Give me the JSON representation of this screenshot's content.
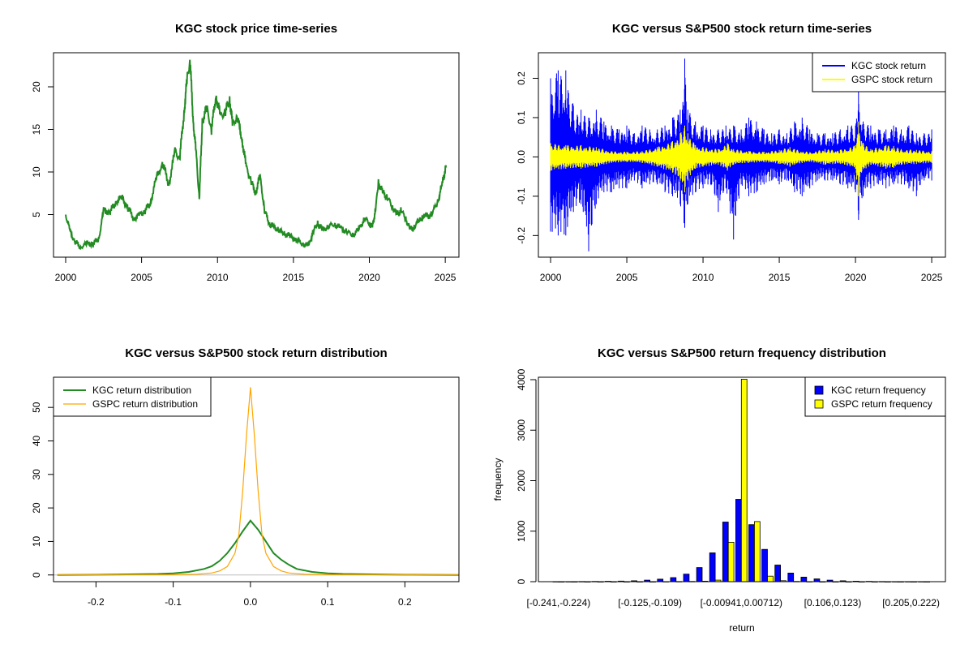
{
  "chart_data": [
    {
      "type": "line",
      "title": "KGC stock price time-series",
      "xlabel": "",
      "ylabel": "",
      "xlim": [
        1999.2,
        2025.9
      ],
      "ylim": [
        0.0,
        24.0
      ],
      "xticks": [
        2000,
        2005,
        2010,
        2015,
        2020,
        2025
      ],
      "xtick_labels": [
        "2000",
        "2005",
        "2010",
        "2015",
        "2020",
        "2025"
      ],
      "yticks": [
        5,
        10,
        15,
        20
      ],
      "ytick_labels": [
        "5",
        "10",
        "15",
        "20"
      ],
      "series": [
        {
          "name": "KGC",
          "color": "#228B22",
          "x": [
            2000.0,
            2000.3,
            2000.6,
            2001.0,
            2001.4,
            2001.8,
            2002.2,
            2002.5,
            2002.9,
            2003.3,
            2003.7,
            2004.1,
            2004.5,
            2004.9,
            2005.2,
            2005.6,
            2006.0,
            2006.4,
            2006.8,
            2007.2,
            2007.5,
            2007.8,
            2008.0,
            2008.2,
            2008.4,
            2008.6,
            2008.8,
            2009.0,
            2009.3,
            2009.6,
            2009.9,
            2010.2,
            2010.5,
            2010.8,
            2011.0,
            2011.3,
            2011.6,
            2011.9,
            2012.2,
            2012.5,
            2012.8,
            2013.1,
            2013.4,
            2013.7,
            2014.0,
            2014.4,
            2014.8,
            2015.2,
            2015.6,
            2016.0,
            2016.3,
            2016.6,
            2016.9,
            2017.3,
            2017.7,
            2018.1,
            2018.5,
            2018.9,
            2019.3,
            2019.7,
            2020.0,
            2020.2,
            2020.4,
            2020.6,
            2020.9,
            2021.2,
            2021.5,
            2021.8,
            2022.1,
            2022.4,
            2022.7,
            2023.0,
            2023.3,
            2023.7,
            2024.1,
            2024.5,
            2024.8,
            2025.05
          ],
          "y": [
            5.0,
            3.0,
            1.8,
            1.2,
            1.6,
            1.5,
            2.3,
            5.5,
            5.2,
            6.5,
            7.0,
            5.8,
            4.5,
            5.0,
            5.3,
            6.5,
            9.5,
            11.0,
            8.5,
            12.5,
            11.5,
            17.0,
            21.0,
            23.0,
            16.0,
            12.0,
            6.8,
            16.0,
            17.5,
            15.0,
            19.0,
            16.5,
            17.0,
            18.5,
            15.5,
            16.5,
            14.0,
            10.5,
            9.0,
            7.5,
            9.5,
            5.5,
            4.0,
            3.5,
            3.2,
            2.8,
            2.4,
            2.0,
            1.6,
            1.3,
            3.0,
            4.0,
            3.2,
            3.6,
            3.9,
            3.4,
            3.0,
            2.6,
            3.2,
            4.6,
            4.0,
            3.5,
            5.5,
            8.8,
            7.5,
            7.0,
            6.0,
            5.0,
            5.5,
            4.5,
            3.2,
            3.6,
            4.5,
            4.8,
            5.0,
            6.5,
            8.5,
            10.8
          ]
        }
      ]
    },
    {
      "type": "line",
      "title": "KGC versus S&P500 stock return time-series",
      "xlabel": "",
      "ylabel": "",
      "xlim": [
        1999.2,
        2025.9
      ],
      "ylim": [
        -0.255,
        0.265
      ],
      "xticks": [
        2000,
        2005,
        2010,
        2015,
        2020,
        2025
      ],
      "xtick_labels": [
        "2000",
        "2005",
        "2010",
        "2015",
        "2020",
        "2025"
      ],
      "yticks": [
        -0.2,
        -0.1,
        0.0,
        0.1,
        0.2
      ],
      "ytick_labels": [
        "-0.2",
        "-0.1",
        "0.0",
        "0.1",
        "0.2"
      ],
      "legend": {
        "position": "top-right",
        "entries": [
          "KGC stock return",
          "GSPC stock return"
        ]
      },
      "series": [
        {
          "name": "KGC stock return",
          "color": "#0000FF",
          "x": [
            2000.0,
            2000.5,
            2001.0,
            2001.5,
            2002.0,
            2002.5,
            2003.0,
            2003.5,
            2004.0,
            2004.5,
            2005.0,
            2005.5,
            2006.0,
            2006.5,
            2007.0,
            2007.5,
            2008.0,
            2008.5,
            2008.8,
            2009.0,
            2009.5,
            2010.0,
            2010.5,
            2011.0,
            2011.5,
            2012.0,
            2012.5,
            2013.0,
            2013.5,
            2014.0,
            2014.5,
            2015.0,
            2015.5,
            2016.0,
            2016.5,
            2017.0,
            2017.5,
            2018.0,
            2018.5,
            2019.0,
            2019.5,
            2020.0,
            2020.2,
            2020.5,
            2021.0,
            2021.5,
            2022.0,
            2022.5,
            2023.0,
            2023.5,
            2024.0,
            2024.5,
            2025.0
          ],
          "upper": [
            0.2,
            0.22,
            0.22,
            0.13,
            0.12,
            0.1,
            0.12,
            0.09,
            0.08,
            0.07,
            0.08,
            0.06,
            0.08,
            0.07,
            0.07,
            0.08,
            0.1,
            0.12,
            0.25,
            0.12,
            0.09,
            0.08,
            0.07,
            0.07,
            0.08,
            0.08,
            0.07,
            0.1,
            0.09,
            0.07,
            0.06,
            0.07,
            0.06,
            0.09,
            0.1,
            0.07,
            0.06,
            0.06,
            0.06,
            0.07,
            0.08,
            0.08,
            0.19,
            0.09,
            0.08,
            0.07,
            0.07,
            0.08,
            0.07,
            0.08,
            0.06,
            0.06,
            0.07
          ],
          "lower": [
            -0.19,
            -0.2,
            -0.2,
            -0.14,
            -0.12,
            -0.24,
            -0.12,
            -0.09,
            -0.09,
            -0.08,
            -0.08,
            -0.06,
            -0.08,
            -0.07,
            -0.07,
            -0.09,
            -0.1,
            -0.12,
            -0.18,
            -0.12,
            -0.09,
            -0.08,
            -0.07,
            -0.14,
            -0.08,
            -0.21,
            -0.07,
            -0.1,
            -0.09,
            -0.07,
            -0.06,
            -0.07,
            -0.06,
            -0.09,
            -0.1,
            -0.08,
            -0.06,
            -0.06,
            -0.06,
            -0.07,
            -0.08,
            -0.09,
            -0.16,
            -0.1,
            -0.08,
            -0.07,
            -0.08,
            -0.07,
            -0.07,
            -0.08,
            -0.1,
            -0.06,
            -0.06
          ]
        },
        {
          "name": "GSPC stock return",
          "color": "#FFFF00",
          "x": [
            2000.0,
            2001.0,
            2002.0,
            2003.0,
            2004.0,
            2005.0,
            2006.0,
            2007.0,
            2008.0,
            2008.5,
            2008.8,
            2009.0,
            2009.5,
            2010.0,
            2011.0,
            2011.6,
            2012.0,
            2013.0,
            2014.0,
            2015.0,
            2015.7,
            2016.0,
            2017.0,
            2018.0,
            2019.0,
            2020.0,
            2020.2,
            2020.4,
            2021.0,
            2022.0,
            2022.5,
            2023.0,
            2024.0,
            2025.0
          ],
          "upper": [
            0.035,
            0.03,
            0.03,
            0.025,
            0.015,
            0.013,
            0.015,
            0.025,
            0.04,
            0.06,
            0.08,
            0.06,
            0.03,
            0.025,
            0.02,
            0.035,
            0.02,
            0.015,
            0.013,
            0.018,
            0.025,
            0.02,
            0.012,
            0.02,
            0.018,
            0.03,
            0.09,
            0.04,
            0.02,
            0.03,
            0.028,
            0.02,
            0.018,
            0.015
          ],
          "lower": [
            -0.035,
            -0.03,
            -0.03,
            -0.025,
            -0.015,
            -0.013,
            -0.015,
            -0.025,
            -0.04,
            -0.06,
            -0.09,
            -0.06,
            -0.03,
            -0.025,
            -0.02,
            -0.035,
            -0.02,
            -0.015,
            -0.013,
            -0.018,
            -0.025,
            -0.02,
            -0.012,
            -0.02,
            -0.018,
            -0.03,
            -0.1,
            -0.04,
            -0.02,
            -0.03,
            -0.028,
            -0.02,
            -0.018,
            -0.015
          ]
        }
      ]
    },
    {
      "type": "line",
      "title": "KGC versus S&P500 stock return distribution",
      "xlabel": "",
      "ylabel": "",
      "xlim": [
        -0.255,
        0.27
      ],
      "ylim": [
        -2.0,
        59.0
      ],
      "xticks": [
        -0.2,
        -0.1,
        0.0,
        0.1,
        0.2
      ],
      "xtick_labels": [
        "-0.2",
        "-0.1",
        "0.0",
        "0.1",
        "0.2"
      ],
      "yticks": [
        0,
        10,
        20,
        30,
        40,
        50
      ],
      "ytick_labels": [
        "0",
        "10",
        "20",
        "30",
        "40",
        "50"
      ],
      "legend": {
        "position": "top-left",
        "entries": [
          "KGC return distribution",
          "GSPC return distribution"
        ]
      },
      "series": [
        {
          "name": "KGC return distribution",
          "color": "#228B22",
          "x": [
            -0.25,
            -0.2,
            -0.15,
            -0.12,
            -0.1,
            -0.08,
            -0.06,
            -0.05,
            -0.04,
            -0.03,
            -0.02,
            -0.01,
            0.0,
            0.01,
            0.02,
            0.03,
            0.04,
            0.05,
            0.06,
            0.08,
            0.1,
            0.12,
            0.15,
            0.2,
            0.27
          ],
          "y": [
            0.0,
            0.05,
            0.2,
            0.3,
            0.5,
            0.9,
            1.8,
            2.6,
            4.2,
            6.5,
            9.5,
            13.0,
            16.2,
            13.5,
            10.0,
            6.5,
            4.5,
            3.0,
            1.8,
            0.9,
            0.5,
            0.3,
            0.2,
            0.05,
            0.0
          ]
        },
        {
          "name": "GSPC return distribution",
          "color": "#FFA500",
          "x": [
            -0.25,
            -0.1,
            -0.07,
            -0.05,
            -0.04,
            -0.03,
            -0.02,
            -0.015,
            -0.01,
            -0.005,
            0.0,
            0.005,
            0.01,
            0.015,
            0.02,
            0.03,
            0.04,
            0.05,
            0.07,
            0.1,
            0.27
          ],
          "y": [
            0.0,
            0.05,
            0.2,
            0.6,
            1.2,
            2.5,
            6.5,
            12.0,
            25.0,
            42.0,
            56.0,
            42.0,
            25.0,
            12.0,
            6.5,
            2.5,
            1.2,
            0.6,
            0.2,
            0.05,
            0.0
          ]
        }
      ]
    },
    {
      "type": "bar",
      "title": "KGC versus S&P500 return frequency distribution",
      "xlabel": "return",
      "ylabel": "frequency",
      "ylim": [
        0,
        4000
      ],
      "yticks": [
        0,
        1000,
        2000,
        3000,
        4000
      ],
      "ytick_labels": [
        "0",
        "1000",
        "2000",
        "3000",
        "4000"
      ],
      "categories": [
        "[-0.241,-0.224)",
        "[-0.224,-0.207)",
        "[-0.207,-0.191)",
        "[-0.191,-0.174)",
        "[-0.174,-0.158)",
        "[-0.158,-0.141)",
        "[-0.141,-0.125)",
        "[-0.125,-0.109)",
        "[-0.109,-0.0922)",
        "[-0.0922,-0.0758)",
        "[-0.0758,-0.0594)",
        "[-0.0594,-0.0430)",
        "[-0.0430,-0.0266)",
        "[-0.0266,-0.00941)",
        "[-0.00941,0.00712)",
        "[0.00712,0.0235)",
        "[0.0235,0.0399)",
        "[0.0399,0.0563)",
        "[0.0563,0.0727)",
        "[0.0727,0.0891)",
        "[0.0891,0.106)",
        "[0.106,0.123)",
        "[0.123,0.139)",
        "[0.139,0.156)",
        "[0.156,0.172)",
        "[0.172,0.189)",
        "[0.189,0.205)",
        "[0.205,0.222)",
        "[0.222,0.238)"
      ],
      "shown_tick_labels": [
        "[-0.241,-0.224)",
        "[-0.125,-0.109)",
        "[-0.00941,0.00712)",
        "[0.106,0.123)",
        "[0.205,0.222)"
      ],
      "legend": {
        "position": "top-right",
        "entries": [
          "KGC return frequency",
          "GSPC return frequency"
        ]
      },
      "series": [
        {
          "name": "KGC return frequency",
          "color": "#0000FF",
          "values": [
            2,
            1,
            3,
            5,
            8,
            12,
            18,
            30,
            50,
            80,
            150,
            280,
            570,
            1180,
            1630,
            1130,
            640,
            330,
            170,
            90,
            55,
            30,
            18,
            10,
            6,
            4,
            2,
            2,
            1
          ]
        },
        {
          "name": "GSPC return frequency",
          "color": "#FFFF00",
          "values": [
            0,
            0,
            0,
            0,
            0,
            0,
            0,
            0,
            2,
            3,
            5,
            10,
            30,
            780,
            4010,
            1190,
            110,
            20,
            5,
            2,
            0,
            0,
            0,
            0,
            0,
            0,
            0,
            0,
            0
          ]
        }
      ]
    }
  ]
}
